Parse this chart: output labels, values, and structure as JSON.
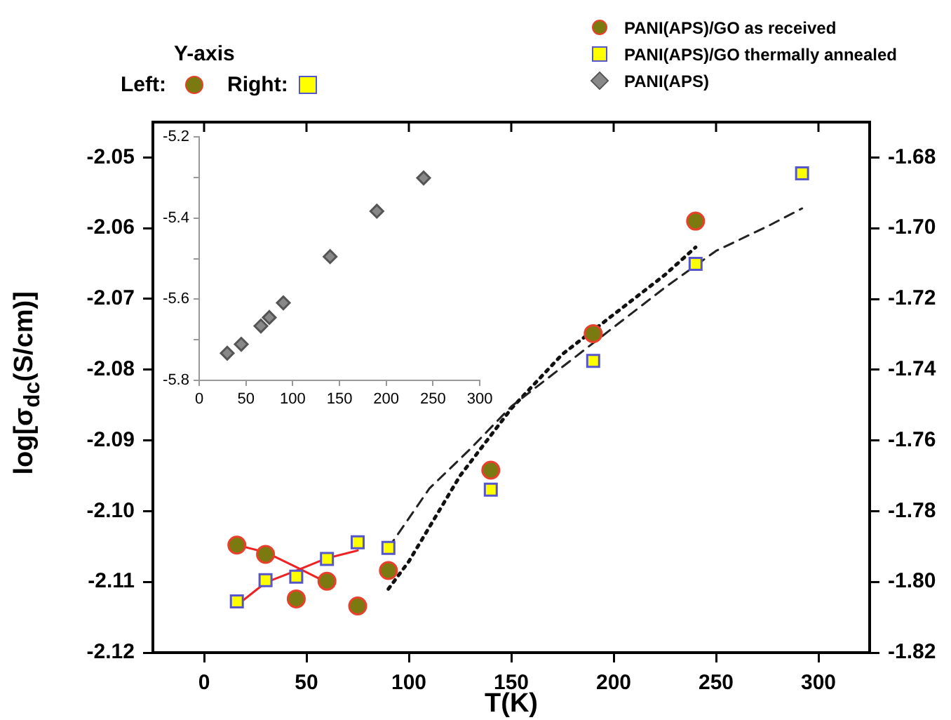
{
  "chart_data": [
    {
      "type": "scatter",
      "xlabel": "T(K)",
      "ylabel": "log[σ$_{dc}$(S/cm)]",
      "xlim": [
        -25,
        325
      ],
      "xticks": [
        0,
        50,
        100,
        150,
        200,
        250,
        300
      ],
      "ylim": [
        -2.12,
        -2.045
      ],
      "yticks": [
        -2.12,
        -2.11,
        {
          "value": -2.1,
          "label": "-2.10"
        },
        -2.09,
        -2.08,
        -2.07,
        -2.06,
        -2.05
      ],
      "y2lim": [
        -1.82,
        -1.67
      ],
      "y2ticks": [
        -1.82,
        {
          "value": -1.8,
          "label": "-1.80"
        },
        -1.78,
        -1.76,
        -1.74,
        -1.72,
        {
          "value": -1.7,
          "label": "-1.70"
        },
        -1.68
      ],
      "grid": false,
      "legend": "top right",
      "annotations": [
        "Y-axis",
        "Left:",
        "Right:"
      ],
      "series": [
        {
          "name": "PANI(APS)/GO as received",
          "type": "scatter",
          "marker": "circle",
          "color": "#7a7a10",
          "x": [
            16,
            30,
            45,
            60,
            75,
            90,
            140,
            190,
            240
          ],
          "values": [
            -2.1048,
            -2.1061,
            -2.1124,
            -2.1099,
            -2.1134,
            -2.1084,
            -2.0942,
            -2.0749,
            -2.059
          ]
        },
        {
          "name": "PANI(APS)/GO thermally annealed",
          "type": "scatter",
          "marker": "square",
          "axis": "y2",
          "color": "#ffff00",
          "x": [
            16,
            30,
            45,
            60,
            75,
            90,
            140,
            190,
            240,
            292
          ],
          "values": [
            -1.8055,
            -1.7995,
            -1.7985,
            -1.7935,
            -1.7888,
            -1.7904,
            -1.7739,
            -1.7375,
            -1.7101,
            -1.6845
          ]
        },
        {
          "type": "line",
          "marker": "none",
          "line_style": "solid",
          "color": "#ee2222",
          "x": [
            16,
            30,
            45,
            60
          ],
          "values": [
            -2.1048,
            -2.1058,
            -2.1079,
            -2.1101
          ]
        },
        {
          "type": "line",
          "marker": "none",
          "line_style": "solid",
          "axis": "y2",
          "color": "#ee2222",
          "x": [
            16,
            30,
            45,
            60,
            75
          ],
          "values": [
            -1.8066,
            -1.8002,
            -1.7968,
            -1.7933,
            -1.7911
          ]
        },
        {
          "type": "line",
          "marker": "none",
          "line_style": "dashed",
          "axis": "y2",
          "color": "#222222",
          "x": [
            90,
            110,
            130,
            150,
            175,
            200,
            225,
            250,
            275,
            292
          ],
          "values": [
            -1.7904,
            -1.7736,
            -1.7624,
            -1.7504,
            -1.7392,
            -1.728,
            -1.7168,
            -1.7064,
            -1.6995,
            -1.6944
          ]
        },
        {
          "type": "line",
          "marker": "none",
          "line_style": "dotted",
          "color": "#111111",
          "x": [
            90,
            100,
            125,
            150,
            175,
            200,
            225,
            240
          ],
          "values": [
            -2.111,
            -2.1071,
            -2.095,
            -2.0855,
            -2.0778,
            -2.0722,
            -2.0666,
            -2.0627
          ]
        }
      ]
    },
    {
      "type": "scatter",
      "xlim": [
        0,
        300
      ],
      "xticks": [
        0,
        50,
        100,
        150,
        200,
        250,
        300
      ],
      "ylim": [
        -5.8,
        -5.2
      ],
      "yticks": [
        -5.8,
        {
          "value": -5.7,
          "label": null
        },
        -5.6,
        {
          "value": -5.5,
          "label": null
        },
        -5.4,
        {
          "value": -5.3,
          "label": null
        },
        -5.2
      ],
      "grid": false,
      "legend": "top right",
      "series": [
        {
          "name": "PANI(APS)",
          "type": "scatter",
          "marker": "diamond",
          "color": "#888888",
          "x": [
            30,
            45,
            66,
            75,
            90,
            140,
            190,
            240
          ],
          "values": [
            -5.733,
            -5.711,
            -5.666,
            -5.645,
            -5.609,
            -5.495,
            -5.383,
            -5.301
          ]
        }
      ]
    }
  ]
}
